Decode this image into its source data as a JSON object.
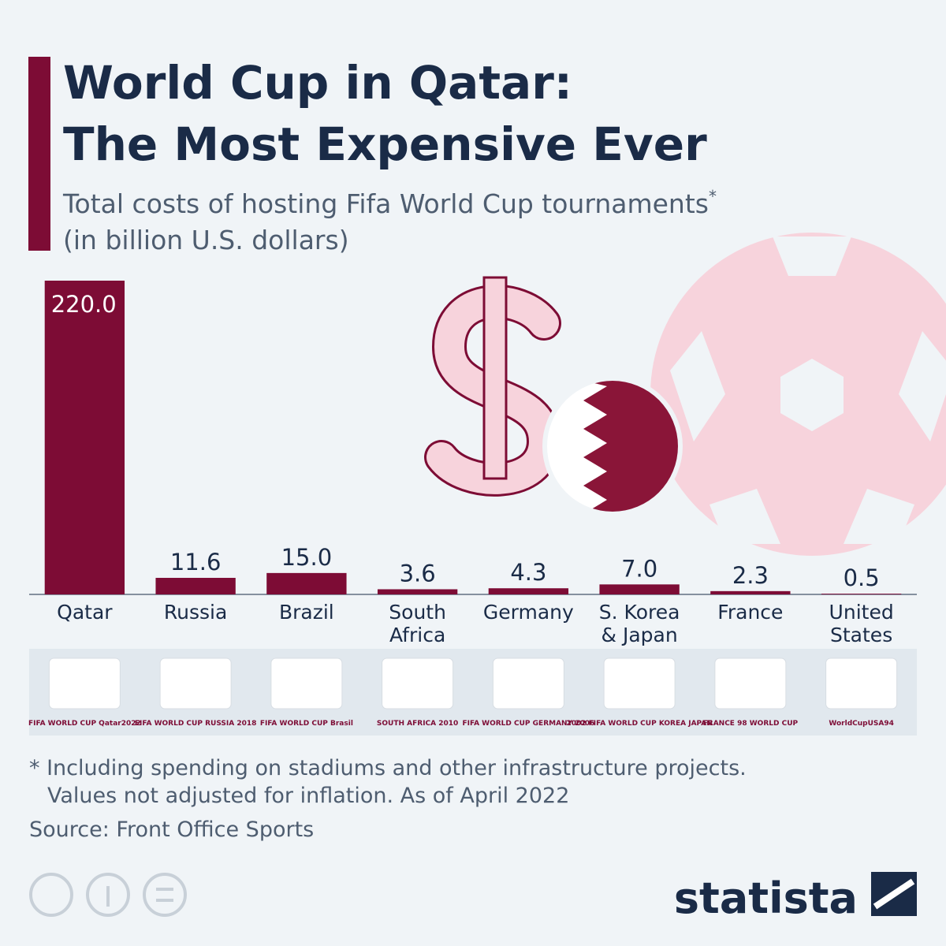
{
  "chart_data": {
    "type": "bar",
    "title": [
      "World Cup in Qatar:",
      "The Most Expensive Ever"
    ],
    "subtitle": [
      "Total costs of hosting Fifa World Cup tournaments",
      "(in billion U.S. dollars)"
    ],
    "subtitle_mark": "*",
    "categories": [
      [
        "Qatar"
      ],
      [
        "Russia"
      ],
      [
        "Brazil"
      ],
      [
        "South",
        "Africa"
      ],
      [
        "Germany"
      ],
      [
        "S. Korea",
        "& Japan"
      ],
      [
        "France"
      ],
      [
        "United",
        "States"
      ]
    ],
    "values": [
      220,
      11.6,
      15,
      3.6,
      4.3,
      7,
      2.3,
      0.5
    ],
    "value_labels": [
      "220.0",
      "11.6",
      "15.0",
      "3.6",
      "4.3",
      "7.0",
      "2.3",
      "0.5"
    ],
    "logos": [
      "FIFA WORLD CUP Qatar2022",
      "FIFA WORLD CUP RUSSIA 2018",
      "FIFA WORLD CUP Brasil",
      "SOUTH AFRICA 2010",
      "FIFA WORLD CUP GERMANY 2006",
      "2002 FIFA WORLD CUP KOREA JAPAN",
      "FRANCE 98 WORLD CUP",
      "WorldCupUSA94"
    ],
    "color": "#7d0c35",
    "ylim": [
      0,
      220
    ],
    "footnote": [
      "* Including spending on stadiums and other infrastructure projects.",
      "Values not adjusted for inflation. As of April 2022"
    ],
    "source": "Source: Front Office Sports",
    "brand": "statista"
  }
}
